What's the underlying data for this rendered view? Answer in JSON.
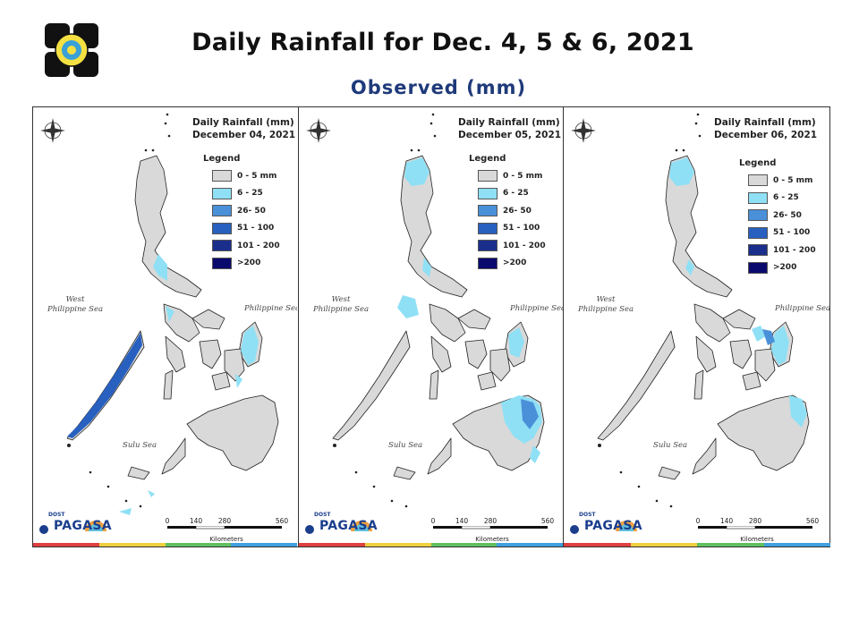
{
  "header": {
    "title": "Daily Rainfall for Dec. 4, 5 & 6, 2021",
    "subtitle": "Observed (mm)"
  },
  "legend": {
    "title": "Legend",
    "classes": [
      {
        "label": "0 - 5 mm",
        "color": "#d9d9d9"
      },
      {
        "label": "6 - 25",
        "color": "#8fe0f5"
      },
      {
        "label": "26- 50",
        "color": "#4a90d9"
      },
      {
        "label": "51 - 100",
        "color": "#2860c0"
      },
      {
        "label": "101 - 200",
        "color": "#1a2f8c"
      },
      {
        "label": ">200",
        "color": "#0a0a6e"
      }
    ]
  },
  "panels": [
    {
      "map_title_1": "Daily Rainfall (mm)",
      "map_title_2": "December 04, 2021"
    },
    {
      "map_title_1": "Daily Rainfall (mm)",
      "map_title_2": "December 05, 2021"
    },
    {
      "map_title_1": "Daily Rainfall (mm)",
      "map_title_2": "December 06, 2021"
    }
  ],
  "labels": {
    "west_sea_1": "West",
    "west_sea_2": "Philippine Sea",
    "philippine_sea": "Philippine Sea",
    "sulu_sea": "Sulu Sea",
    "scale_0": "0",
    "scale_1": "140",
    "scale_2": "280",
    "scale_3": "560",
    "scale_unit": "Kilometers",
    "brand_name": "PAGASA",
    "brand_sub": "DOST"
  },
  "colors": {
    "title_blue": "#1f3a7a",
    "land_gray": "#d9d9d9",
    "brand_blue": "#1a3e8c",
    "stripe": [
      "#e04040",
      "#f0d040",
      "#60c060",
      "#40a0e0"
    ]
  }
}
